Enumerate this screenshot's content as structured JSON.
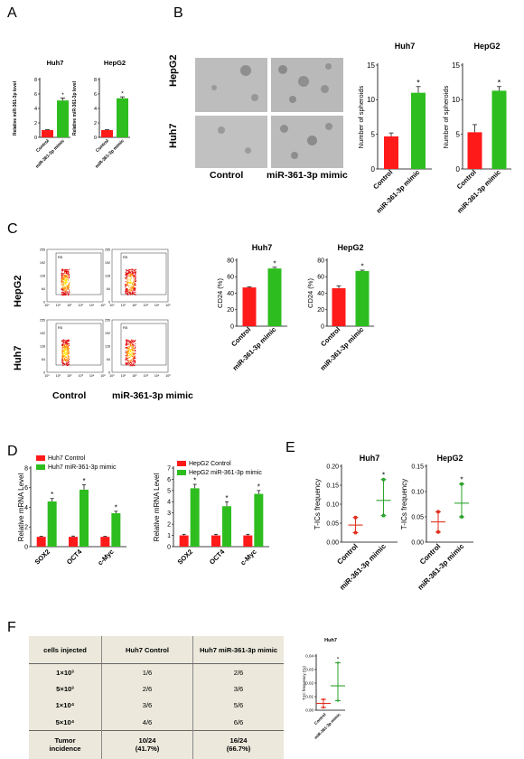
{
  "panel_letters": [
    "A",
    "B",
    "C",
    "D",
    "E",
    "F"
  ],
  "colors": {
    "control": "#ff1a1a",
    "mimic": "#2ebd1f",
    "error": "#1a1a1a",
    "point_red": "#e0301e",
    "point_green": "#2ea32e",
    "table_bg": "#ece9dc"
  },
  "panelB": {
    "image_labels": {
      "row1": "HepG2",
      "row2": "Huh7",
      "col1": "Control",
      "col2": "miR-361-3p mimic"
    }
  },
  "panelC": {
    "flow_labels": {
      "row1": "HepG2",
      "row2": "Huh7",
      "col1": "Control",
      "col2": "miR-361-3p mimic",
      "gate": "R5"
    },
    "y_ticks": [
      "255",
      "192",
      "128",
      "64",
      "0"
    ],
    "x_ticks": [
      "10⁰",
      "10¹",
      "10²",
      "10³",
      "10⁴",
      "10⁵"
    ]
  },
  "table": {
    "headers": [
      "cells injected",
      "Huh7 Control",
      "Huh7 miR-361-3p mimic"
    ],
    "rows": [
      [
        "1×10³",
        "1/6",
        "2/6"
      ],
      [
        "5×10³",
        "2/6",
        "3/6"
      ],
      [
        "1×10⁴",
        "3/6",
        "5/6"
      ],
      [
        "5×10⁴",
        "4/6",
        "6/6"
      ]
    ],
    "footer": {
      "label_1": "Tumor",
      "label_2": "incidence",
      "control_1": "10/24",
      "control_2": "(41.7%)",
      "mimic_1": "16/24",
      "mimic_2": "(66.7%)"
    }
  },
  "chart_data": [
    {
      "type": "bar",
      "panel": "A",
      "title": "Huh7",
      "ylabel": "Relative miR-361-3p level",
      "categories": [
        "Control",
        "miR-361-3p mimic"
      ],
      "values": [
        1,
        5.1
      ],
      "errors": [
        0.05,
        0.35
      ],
      "ylim": [
        0,
        8
      ],
      "yticks": [
        0,
        2,
        4,
        6,
        8
      ],
      "sig": [
        false,
        true
      ]
    },
    {
      "type": "bar",
      "panel": "A",
      "title": "HepG2",
      "ylabel": "Relative miR-361-3p level",
      "categories": [
        "Control",
        "miR-361-3p mimic"
      ],
      "values": [
        1,
        5.4
      ],
      "errors": [
        0.05,
        0.2
      ],
      "ylim": [
        0,
        8
      ],
      "yticks": [
        0,
        2,
        4,
        6,
        8
      ],
      "sig": [
        false,
        true
      ]
    },
    {
      "type": "bar",
      "panel": "B",
      "title": "Huh7",
      "ylabel": "Number of spheroids",
      "categories": [
        "Control",
        "miR-361-3p mimic"
      ],
      "values": [
        4.7,
        11
      ],
      "errors": [
        0.5,
        0.9
      ],
      "ylim": [
        0,
        15
      ],
      "yticks": [
        0,
        5,
        10,
        15
      ],
      "sig": [
        false,
        true
      ]
    },
    {
      "type": "bar",
      "panel": "B",
      "title": "HepG2",
      "ylabel": "Number of spheroids",
      "categories": [
        "Control",
        "miR-361-3p mimic"
      ],
      "values": [
        5.3,
        11.3
      ],
      "errors": [
        1.1,
        0.6
      ],
      "ylim": [
        0,
        15
      ],
      "yticks": [
        0,
        5,
        10,
        15
      ],
      "sig": [
        false,
        true
      ]
    },
    {
      "type": "bar",
      "panel": "C",
      "title": "Huh7",
      "ylabel": "CD24 (%)",
      "categories": [
        "Control",
        "miR-361-3p mimic"
      ],
      "values": [
        47,
        70
      ],
      "errors": [
        0.8,
        1.5
      ],
      "ylim": [
        0,
        80
      ],
      "yticks": [
        0,
        20,
        40,
        60,
        80
      ],
      "sig": [
        false,
        true
      ]
    },
    {
      "type": "bar",
      "panel": "C",
      "title": "HepG2",
      "ylabel": "CD24 (%)",
      "categories": [
        "Control",
        "miR-361-3p mimic"
      ],
      "values": [
        46,
        67
      ],
      "errors": [
        3,
        1
      ],
      "ylim": [
        0,
        80
      ],
      "yticks": [
        0,
        20,
        40,
        60,
        80
      ],
      "sig": [
        false,
        true
      ]
    },
    {
      "type": "bar",
      "panel": "D",
      "title": "",
      "ylabel": "Relative mRNA Level",
      "categories": [
        "SOX2",
        "OCT4",
        "c-Myc"
      ],
      "ylim": [
        0,
        8
      ],
      "yticks": [
        0,
        2,
        4,
        6,
        8
      ],
      "series": [
        {
          "name": "Huh7 Control",
          "values": [
            1,
            1,
            1
          ],
          "errors": [
            0.05,
            0.08,
            0.05
          ]
        },
        {
          "name": "Huh7 miR-361-3p mimic",
          "values": [
            4.6,
            5.8,
            3.4
          ],
          "errors": [
            0.3,
            0.5,
            0.2
          ]
        }
      ],
      "sig": [
        true,
        true,
        true
      ]
    },
    {
      "type": "bar",
      "panel": "D",
      "title": "",
      "ylabel": "Relative mRNA Level",
      "categories": [
        "SOX2",
        "OCT4",
        "c-Myc"
      ],
      "ylim": [
        0,
        7
      ],
      "yticks": [
        0,
        1,
        2,
        3,
        4,
        5,
        6,
        7
      ],
      "series": [
        {
          "name": "HepG2 Control",
          "values": [
            1,
            1,
            1
          ],
          "errors": [
            0.1,
            0.1,
            0.1
          ]
        },
        {
          "name": "HepG2 miR-361-3p mimic",
          "values": [
            5.2,
            3.6,
            4.7
          ],
          "errors": [
            0.35,
            0.4,
            0.3
          ]
        }
      ],
      "sig": [
        true,
        true,
        true
      ]
    },
    {
      "type": "scatter",
      "panel": "E",
      "title": "Huh7",
      "ylabel": "T-ICs frequency",
      "categories": [
        "Control",
        "miR-361-3p mimic"
      ],
      "points": [
        [
          0.025,
          0.065
        ],
        [
          0.07,
          0.165
        ]
      ],
      "means": [
        0.045,
        0.11
      ],
      "ylim": [
        0,
        0.2
      ],
      "yticks": [
        "0.00",
        "0.05",
        "0.10",
        "0.15",
        "0.20"
      ],
      "sig": [
        false,
        true
      ]
    },
    {
      "type": "scatter",
      "panel": "E",
      "title": "HepG2",
      "ylabel": "T-ICs frequency",
      "categories": [
        "Control",
        "miR-361-3p mimic"
      ],
      "points": [
        [
          0.02,
          0.06
        ],
        [
          0.05,
          0.115
        ]
      ],
      "means": [
        0.04,
        0.077
      ],
      "ylim": [
        0,
        0.15
      ],
      "yticks": [
        "0.00",
        "0.05",
        "0.10",
        "0.15"
      ],
      "sig": [
        false,
        true
      ]
    },
    {
      "type": "scatter",
      "panel": "F",
      "title": "Huh7",
      "ylabel": "T-IC frequency (%)",
      "categories": [
        "Control",
        "miR-361-3p mimic"
      ],
      "points": [
        [
          0.002,
          0.008
        ],
        [
          0.007,
          0.035
        ]
      ],
      "means": [
        0.005,
        0.018
      ],
      "ylim": [
        0,
        0.04
      ],
      "yticks": [
        "0.00",
        "0.01",
        "0.02",
        "0.03",
        "0.04"
      ],
      "sig": [
        false,
        true
      ]
    }
  ]
}
